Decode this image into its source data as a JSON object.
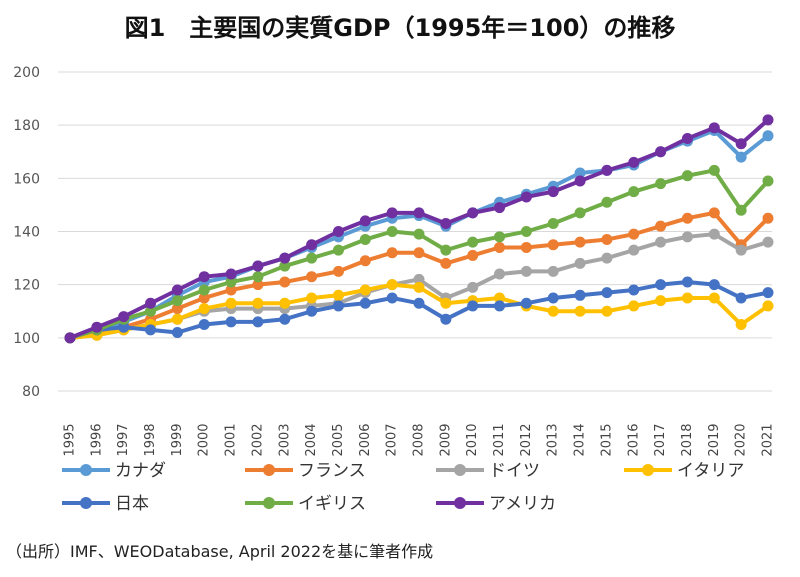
{
  "chart_data": {
    "type": "line",
    "title": "図1　主要国の実質GDP（1995年＝100）の推移",
    "xlabel": "",
    "ylabel": "",
    "ylim": [
      80,
      200
    ],
    "yticks": [
      80,
      100,
      120,
      140,
      160,
      180,
      200
    ],
    "grid": true,
    "legend_position": "bottom",
    "x": [
      "1995",
      "1996",
      "1997",
      "1998",
      "1999",
      "2000",
      "2001",
      "2002",
      "2003",
      "2004",
      "2005",
      "2006",
      "2007",
      "2008",
      "2009",
      "2010",
      "2011",
      "2012",
      "2013",
      "2014",
      "2015",
      "2016",
      "2017",
      "2018",
      "2019",
      "2020",
      "2021"
    ],
    "series": [
      {
        "name": "カナダ",
        "color": "#5B9BD5",
        "values": [
          100,
          102,
          106,
          110,
          116,
          121,
          123,
          127,
          130,
          134,
          138,
          142,
          145,
          146,
          142,
          147,
          151,
          154,
          157,
          162,
          163,
          165,
          170,
          174,
          178,
          168,
          176
        ]
      },
      {
        "name": "フランス",
        "color": "#ED7D31",
        "values": [
          100,
          101,
          104,
          107,
          111,
          115,
          118,
          120,
          121,
          123,
          125,
          129,
          132,
          132,
          128,
          131,
          134,
          134,
          135,
          136,
          137,
          139,
          142,
          145,
          147,
          135,
          145
        ]
      },
      {
        "name": "ドイツ",
        "color": "#A5A5A5",
        "values": [
          100,
          101,
          103,
          105,
          107,
          110,
          111,
          111,
          111,
          112,
          113,
          117,
          120,
          122,
          115,
          119,
          124,
          125,
          125,
          128,
          130,
          133,
          136,
          138,
          139,
          133,
          136
        ]
      },
      {
        "name": "イタリア",
        "color": "#FFC000",
        "values": [
          100,
          101,
          103,
          105,
          107,
          111,
          113,
          113,
          113,
          115,
          116,
          118,
          120,
          119,
          113,
          114,
          115,
          112,
          110,
          110,
          110,
          112,
          114,
          115,
          115,
          105,
          112
        ]
      },
      {
        "name": "日本",
        "color": "#4472C4",
        "values": [
          100,
          103,
          104,
          103,
          102,
          105,
          106,
          106,
          107,
          110,
          112,
          113,
          115,
          113,
          107,
          112,
          112,
          113,
          115,
          116,
          117,
          118,
          120,
          121,
          120,
          115,
          117
        ]
      },
      {
        "name": "イギリス",
        "color": "#70AD47",
        "values": [
          100,
          103,
          107,
          110,
          114,
          118,
          121,
          123,
          127,
          130,
          133,
          137,
          140,
          139,
          133,
          136,
          138,
          140,
          143,
          147,
          151,
          155,
          158,
          161,
          163,
          148,
          159
        ]
      },
      {
        "name": "アメリカ",
        "color": "#7030A0",
        "values": [
          100,
          104,
          108,
          113,
          118,
          123,
          124,
          127,
          130,
          135,
          140,
          144,
          147,
          147,
          143,
          147,
          149,
          153,
          155,
          159,
          163,
          166,
          170,
          175,
          179,
          173,
          182
        ]
      }
    ]
  },
  "source_note": "（出所）IMF、WEODatabase, April 2022を基に筆者作成"
}
